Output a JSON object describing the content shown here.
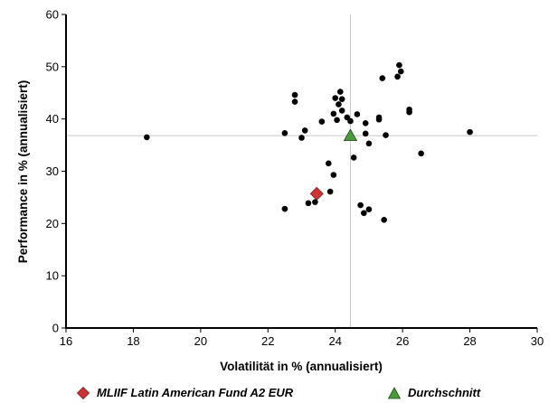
{
  "chart_data": {
    "type": "scatter",
    "xlabel": "Volatilität in % (annualisiert)",
    "ylabel": "Performance in % (annualisiert)",
    "xlim": [
      16,
      30
    ],
    "ylim": [
      0,
      60
    ],
    "x_ticks": [
      "16",
      "18",
      "20",
      "22",
      "24",
      "26",
      "28",
      "30"
    ],
    "y_ticks": [
      "0",
      "10",
      "20",
      "30",
      "40",
      "50",
      "60"
    ],
    "grid": false,
    "reference_lines": {
      "x": 24.45,
      "y": 36.8
    },
    "legend_position": "bottom",
    "series": [
      {
        "name": "",
        "marker": "circle",
        "color": "#000000",
        "points": [
          [
            18.4,
            36.5
          ],
          [
            22.5,
            22.8
          ],
          [
            22.5,
            37.3
          ],
          [
            22.8,
            44.6
          ],
          [
            22.8,
            43.3
          ],
          [
            23.0,
            36.4
          ],
          [
            23.1,
            37.8
          ],
          [
            23.2,
            23.9
          ],
          [
            23.4,
            24.1
          ],
          [
            23.6,
            39.5
          ],
          [
            23.8,
            31.5
          ],
          [
            23.85,
            26.1
          ],
          [
            23.95,
            29.3
          ],
          [
            23.95,
            41.0
          ],
          [
            24.0,
            44.0
          ],
          [
            24.05,
            39.8
          ],
          [
            24.1,
            42.8
          ],
          [
            24.15,
            45.2
          ],
          [
            24.2,
            41.6
          ],
          [
            24.2,
            43.8
          ],
          [
            24.35,
            40.3
          ],
          [
            24.45,
            39.6
          ],
          [
            24.55,
            32.6
          ],
          [
            24.65,
            40.9
          ],
          [
            24.75,
            23.5
          ],
          [
            24.85,
            22.0
          ],
          [
            24.9,
            39.2
          ],
          [
            24.9,
            37.2
          ],
          [
            25.0,
            22.7
          ],
          [
            25.0,
            35.3
          ],
          [
            25.3,
            39.9
          ],
          [
            25.3,
            40.3
          ],
          [
            25.4,
            47.8
          ],
          [
            25.45,
            20.7
          ],
          [
            25.5,
            36.9
          ],
          [
            25.85,
            48.1
          ],
          [
            25.9,
            50.3
          ],
          [
            25.95,
            49.1
          ],
          [
            26.2,
            41.3
          ],
          [
            26.2,
            41.8
          ],
          [
            26.55,
            33.4
          ],
          [
            28.0,
            37.5
          ]
        ]
      },
      {
        "name": "MLIIF Latin American Fund A2 EUR",
        "marker": "diamond",
        "color": "#cc3333",
        "points": [
          [
            23.45,
            25.7
          ]
        ]
      },
      {
        "name": "Durchschnitt",
        "marker": "triangle",
        "color": "#4a9a3a",
        "points": [
          [
            24.45,
            36.8
          ]
        ]
      }
    ]
  }
}
